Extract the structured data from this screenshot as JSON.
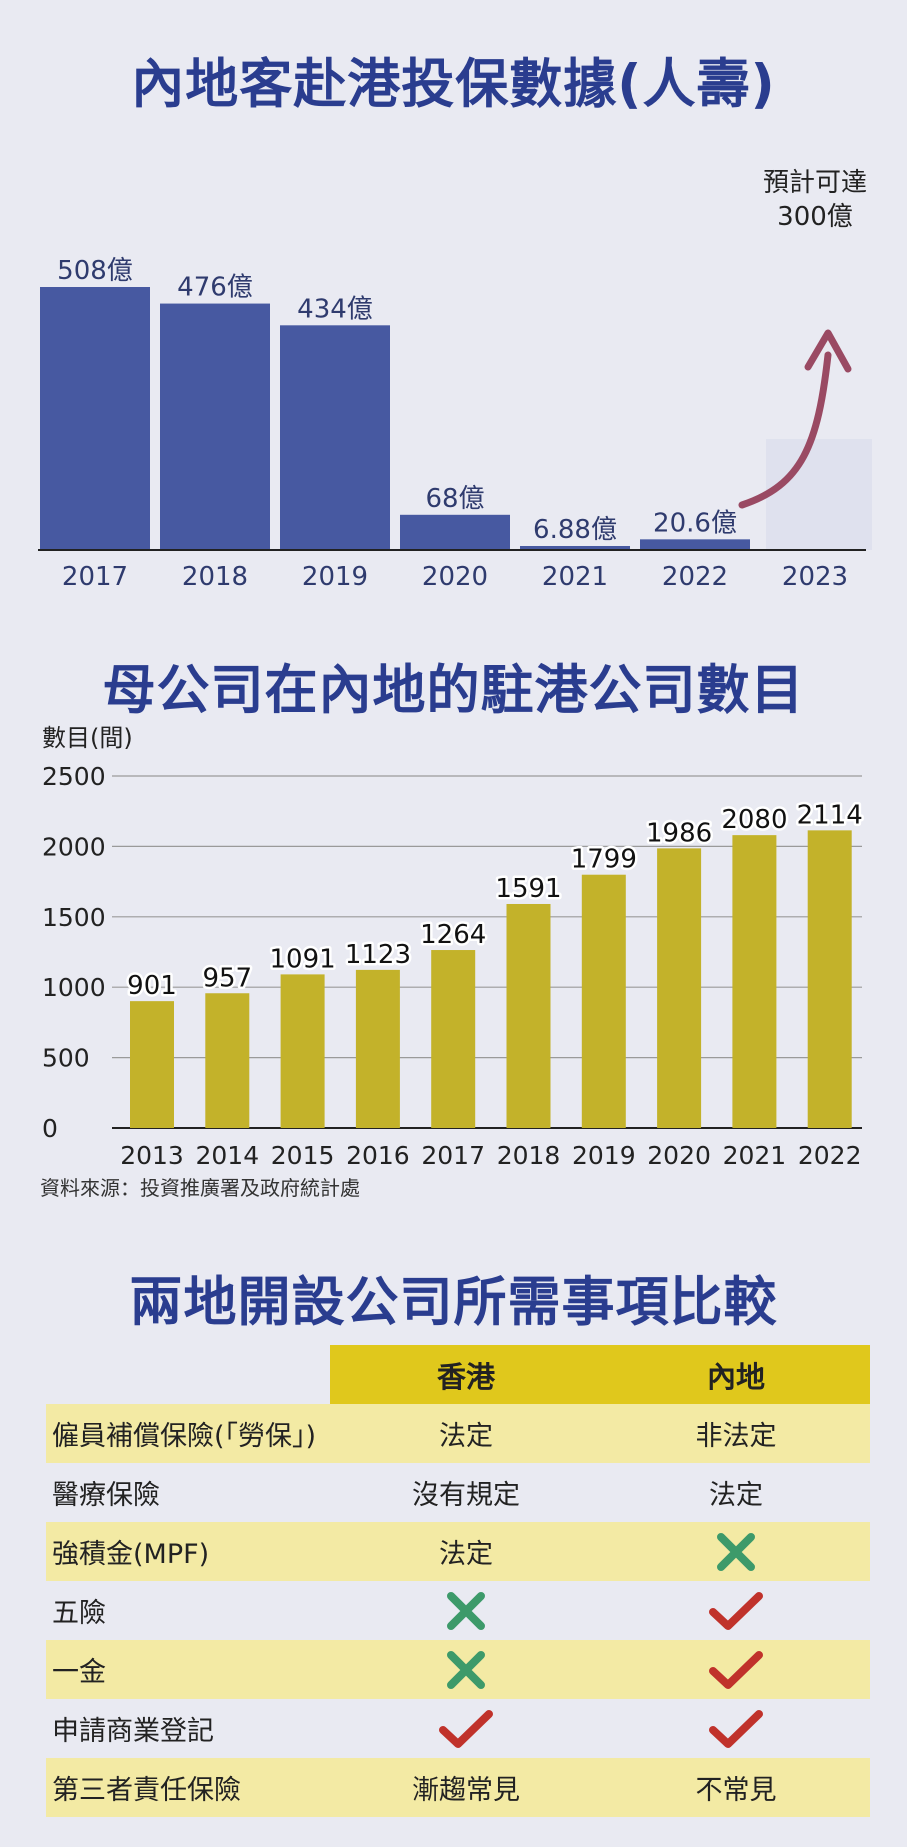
{
  "colors": {
    "title": "#2a3d8f",
    "bar1": "#4759a1",
    "bar2": "#c3b22a",
    "arrow": "#9a4a63",
    "header": "#e0c81c",
    "row_shade": "#f3eaa4",
    "cross": "#3d9a6a",
    "check": "#c0322b"
  },
  "chart1_title": "內地客赴港投保數據(人壽)",
  "chart2_title": "母公司在內地的駐港公司數目",
  "source": "資料來源：投資推廣署及政府統計處",
  "chart_data": [
    {
      "type": "bar",
      "title": "內地客赴港投保數據(人壽)",
      "categories": [
        "2017",
        "2018",
        "2019",
        "2020",
        "2021",
        "2022",
        "2023"
      ],
      "values": [
        508,
        476,
        434,
        68,
        6.88,
        20.6,
        null
      ],
      "data_labels": [
        "508億",
        "476億",
        "434億",
        "68億",
        "6.88億",
        "20.6億",
        ""
      ],
      "projection": {
        "category": "2023",
        "value": 300,
        "label_line1": "預計可達",
        "label_line2": "300億"
      },
      "ylim": [
        0,
        520
      ]
    },
    {
      "type": "bar",
      "title": "母公司在內地的駐港公司數目",
      "ylabel": "數目(間)",
      "categories": [
        "2013",
        "2014",
        "2015",
        "2016",
        "2017",
        "2018",
        "2019",
        "2020",
        "2021",
        "2022"
      ],
      "values": [
        901,
        957,
        1091,
        1123,
        1264,
        1591,
        1799,
        1986,
        2080,
        2114
      ],
      "yticks": [
        "0",
        "500",
        "1000",
        "1500",
        "2000",
        "2500"
      ],
      "ylim": [
        0,
        2500
      ],
      "grid": true
    }
  ],
  "table": {
    "title": "兩地開設公司所需事項比較",
    "headers": [
      "",
      "香港",
      "內地"
    ],
    "rows": [
      {
        "item": "僱員補償保險(「勞保」)",
        "hk": "法定",
        "cn": "非法定"
      },
      {
        "item": "醫療保險",
        "hk": "沒有規定",
        "cn": "法定"
      },
      {
        "item": "強積金(MPF)",
        "hk": "法定",
        "cn": "cross-icon"
      },
      {
        "item": "五險",
        "hk": "cross-icon",
        "cn": "check-icon"
      },
      {
        "item": "一金",
        "hk": "cross-icon",
        "cn": "check-icon"
      },
      {
        "item": "申請商業登記",
        "hk": "check-icon",
        "cn": "check-icon"
      },
      {
        "item": "第三者責任保險",
        "hk": "漸趨常見",
        "cn": "不常見"
      }
    ]
  }
}
